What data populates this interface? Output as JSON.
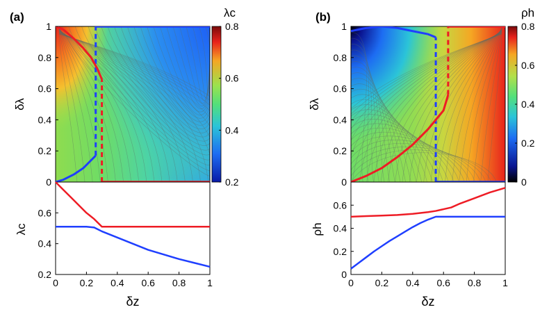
{
  "chart_data": [
    {
      "type": "heatmap",
      "panel_label": "(a)",
      "xlabel": "δz",
      "ylabel": "δλ",
      "xlim": [
        0,
        1
      ],
      "ylim": [
        0,
        1
      ],
      "yticks": [
        "0",
        "0.2",
        "0.4",
        "0.6",
        "0.8",
        "1"
      ],
      "colorbar": {
        "label": "λc",
        "min": 0.2,
        "max": 0.8,
        "ticks": [
          "0.2",
          "0.4",
          "0.6",
          "0.8"
        ]
      },
      "phase_boundaries": [
        {
          "series": "blue",
          "solid_lower": [
            [
              0,
              0
            ],
            [
              0.05,
              0.015
            ],
            [
              0.12,
              0.05
            ],
            [
              0.18,
              0.09
            ],
            [
              0.22,
              0.13
            ],
            [
              0.26,
              0.17
            ]
          ],
          "dashed_vertical": {
            "x": 0.26,
            "y": [
              0.17,
              1.0
            ]
          },
          "solid_top": {
            "x": [
              0.26,
              1.0
            ],
            "y": 1.0
          }
        },
        {
          "series": "red",
          "solid_upper": [
            [
              0,
              1.0
            ],
            [
              0.05,
              0.98
            ],
            [
              0.12,
              0.92
            ],
            [
              0.18,
              0.86
            ],
            [
              0.23,
              0.8
            ],
            [
              0.27,
              0.73
            ],
            [
              0.3,
              0.66
            ]
          ],
          "dashed_vertical": {
            "x": 0.3,
            "y": [
              0.0,
              0.66
            ]
          },
          "solid_bottom": {
            "x": [
              0.3,
              1.0
            ],
            "y": 0.0
          }
        }
      ]
    },
    {
      "type": "line",
      "panel": "a-lower",
      "xlabel": "δz",
      "ylabel": "λc",
      "xlim": [
        0,
        1
      ],
      "ylim": [
        0.2,
        0.8
      ],
      "xticks": [
        "0",
        "0.2",
        "0.4",
        "0.6",
        "0.8",
        "1"
      ],
      "yticks": [
        "0.2",
        "0.4",
        "0.6"
      ],
      "series": [
        {
          "name": "red",
          "color": "#ee1c25",
          "x": [
            0,
            0.05,
            0.1,
            0.15,
            0.2,
            0.25,
            0.3,
            0.4,
            0.6,
            0.8,
            1.0
          ],
          "y": [
            0.8,
            0.75,
            0.7,
            0.65,
            0.6,
            0.56,
            0.51,
            0.51,
            0.51,
            0.51,
            0.51
          ]
        },
        {
          "name": "blue",
          "color": "#1f3fff",
          "x": [
            0,
            0.1,
            0.2,
            0.25,
            0.3,
            0.4,
            0.5,
            0.6,
            0.7,
            0.8,
            0.9,
            1.0
          ],
          "y": [
            0.51,
            0.51,
            0.51,
            0.505,
            0.48,
            0.44,
            0.4,
            0.36,
            0.33,
            0.3,
            0.275,
            0.25
          ]
        }
      ]
    },
    {
      "type": "heatmap",
      "panel_label": "(b)",
      "xlabel": "δz",
      "ylabel": "δλ",
      "xlim": [
        0,
        1
      ],
      "ylim": [
        0,
        1
      ],
      "yticks": [
        "0",
        "0.2",
        "0.4",
        "0.6",
        "0.8",
        "1"
      ],
      "colorbar": {
        "label": "ρh",
        "min": 0,
        "max": 0.8,
        "ticks": [
          "0",
          "0.2",
          "0.4",
          "0.6",
          "0.8"
        ]
      },
      "phase_boundaries": [
        {
          "series": "blue",
          "solid_upper": [
            [
              0,
              0.97
            ],
            [
              0.1,
              0.99
            ],
            [
              0.2,
              1.0
            ],
            [
              0.3,
              0.99
            ],
            [
              0.4,
              0.97
            ],
            [
              0.5,
              0.95
            ],
            [
              0.55,
              0.93
            ]
          ],
          "dashed_vertical": {
            "x": 0.55,
            "y": [
              0.0,
              0.93
            ]
          },
          "solid_bottom": {
            "x": [
              0.55,
              1.0
            ],
            "y": 0.0
          }
        },
        {
          "series": "red",
          "solid_lower": [
            [
              0,
              0
            ],
            [
              0.1,
              0.04
            ],
            [
              0.2,
              0.09
            ],
            [
              0.3,
              0.16
            ],
            [
              0.4,
              0.24
            ],
            [
              0.5,
              0.34
            ],
            [
              0.6,
              0.46
            ],
            [
              0.63,
              0.56
            ]
          ],
          "dashed_vertical": {
            "x": 0.63,
            "y": [
              0.56,
              1.0
            ]
          },
          "solid_top": {
            "x": [
              0.63,
              1.0
            ],
            "y": 1.0
          }
        }
      ]
    },
    {
      "type": "line",
      "panel": "b-lower",
      "xlabel": "δz",
      "ylabel": "ρh",
      "xlim": [
        0,
        1
      ],
      "ylim": [
        0,
        0.8
      ],
      "xticks": [
        "0",
        "0.2",
        "0.4",
        "0.6",
        "0.8",
        "1"
      ],
      "yticks": [
        "0",
        "0.2",
        "0.4",
        "0.6"
      ],
      "series": [
        {
          "name": "red",
          "color": "#ee1c25",
          "x": [
            0,
            0.1,
            0.2,
            0.3,
            0.4,
            0.5,
            0.55,
            0.6,
            0.65,
            0.7,
            0.8,
            0.9,
            1.0
          ],
          "y": [
            0.5,
            0.505,
            0.51,
            0.515,
            0.525,
            0.54,
            0.55,
            0.565,
            0.58,
            0.61,
            0.66,
            0.71,
            0.75
          ]
        },
        {
          "name": "blue",
          "color": "#1f3fff",
          "x": [
            0,
            0.05,
            0.1,
            0.15,
            0.2,
            0.25,
            0.3,
            0.35,
            0.4,
            0.45,
            0.5,
            0.55,
            0.6,
            0.8,
            1.0
          ],
          "y": [
            0.05,
            0.1,
            0.15,
            0.2,
            0.245,
            0.29,
            0.33,
            0.37,
            0.41,
            0.445,
            0.475,
            0.5,
            0.5,
            0.5,
            0.5
          ]
        }
      ]
    }
  ]
}
